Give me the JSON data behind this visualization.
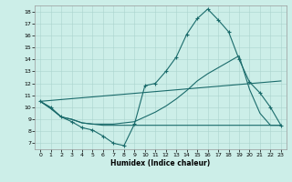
{
  "xlabel": "Humidex (Indice chaleur)",
  "bg_color": "#cceee8",
  "line_color": "#1a6b6b",
  "xlim": [
    -0.5,
    23.5
  ],
  "ylim": [
    6.5,
    18.5
  ],
  "xticks": [
    0,
    1,
    2,
    3,
    4,
    5,
    6,
    7,
    8,
    9,
    10,
    11,
    12,
    13,
    14,
    15,
    16,
    17,
    18,
    19,
    20,
    21,
    22,
    23
  ],
  "yticks": [
    7,
    8,
    9,
    10,
    11,
    12,
    13,
    14,
    15,
    16,
    17,
    18
  ],
  "line1_x": [
    0,
    1,
    2,
    3,
    4,
    5,
    6,
    7,
    8,
    9,
    10,
    11,
    12,
    13,
    14,
    15,
    16,
    17,
    18,
    19,
    20,
    21,
    22,
    23
  ],
  "line1_y": [
    10.5,
    10.0,
    9.2,
    8.8,
    8.3,
    8.1,
    7.6,
    7.0,
    6.8,
    8.6,
    11.8,
    12.0,
    13.0,
    14.2,
    16.1,
    17.4,
    18.2,
    17.3,
    16.3,
    14.0,
    12.1,
    11.2,
    10.0,
    8.5
  ],
  "line2_x": [
    0,
    1,
    2,
    3,
    4,
    5,
    6,
    7,
    8,
    9,
    10,
    11,
    12,
    13,
    14,
    15,
    16,
    17,
    18,
    19,
    20,
    21,
    22,
    23
  ],
  "line2_y": [
    10.5,
    9.9,
    9.2,
    9.0,
    8.7,
    8.6,
    8.6,
    8.6,
    8.7,
    8.8,
    9.2,
    9.6,
    10.1,
    10.7,
    11.4,
    12.2,
    12.8,
    13.3,
    13.8,
    14.3,
    11.5,
    9.5,
    8.5,
    8.5
  ],
  "line3_x": [
    0,
    1,
    2,
    3,
    4,
    5,
    6,
    7,
    8,
    9,
    10,
    11,
    12,
    13,
    14,
    15,
    16,
    17,
    18,
    19,
    20,
    21,
    22,
    23
  ],
  "line3_y": [
    10.5,
    9.9,
    9.2,
    9.0,
    8.7,
    8.6,
    8.5,
    8.5,
    8.5,
    8.5,
    8.5,
    8.5,
    8.5,
    8.5,
    8.5,
    8.5,
    8.5,
    8.5,
    8.5,
    8.5,
    8.5,
    8.5,
    8.5,
    8.5
  ],
  "line4_x": [
    0,
    23
  ],
  "line4_y": [
    10.5,
    12.2
  ]
}
